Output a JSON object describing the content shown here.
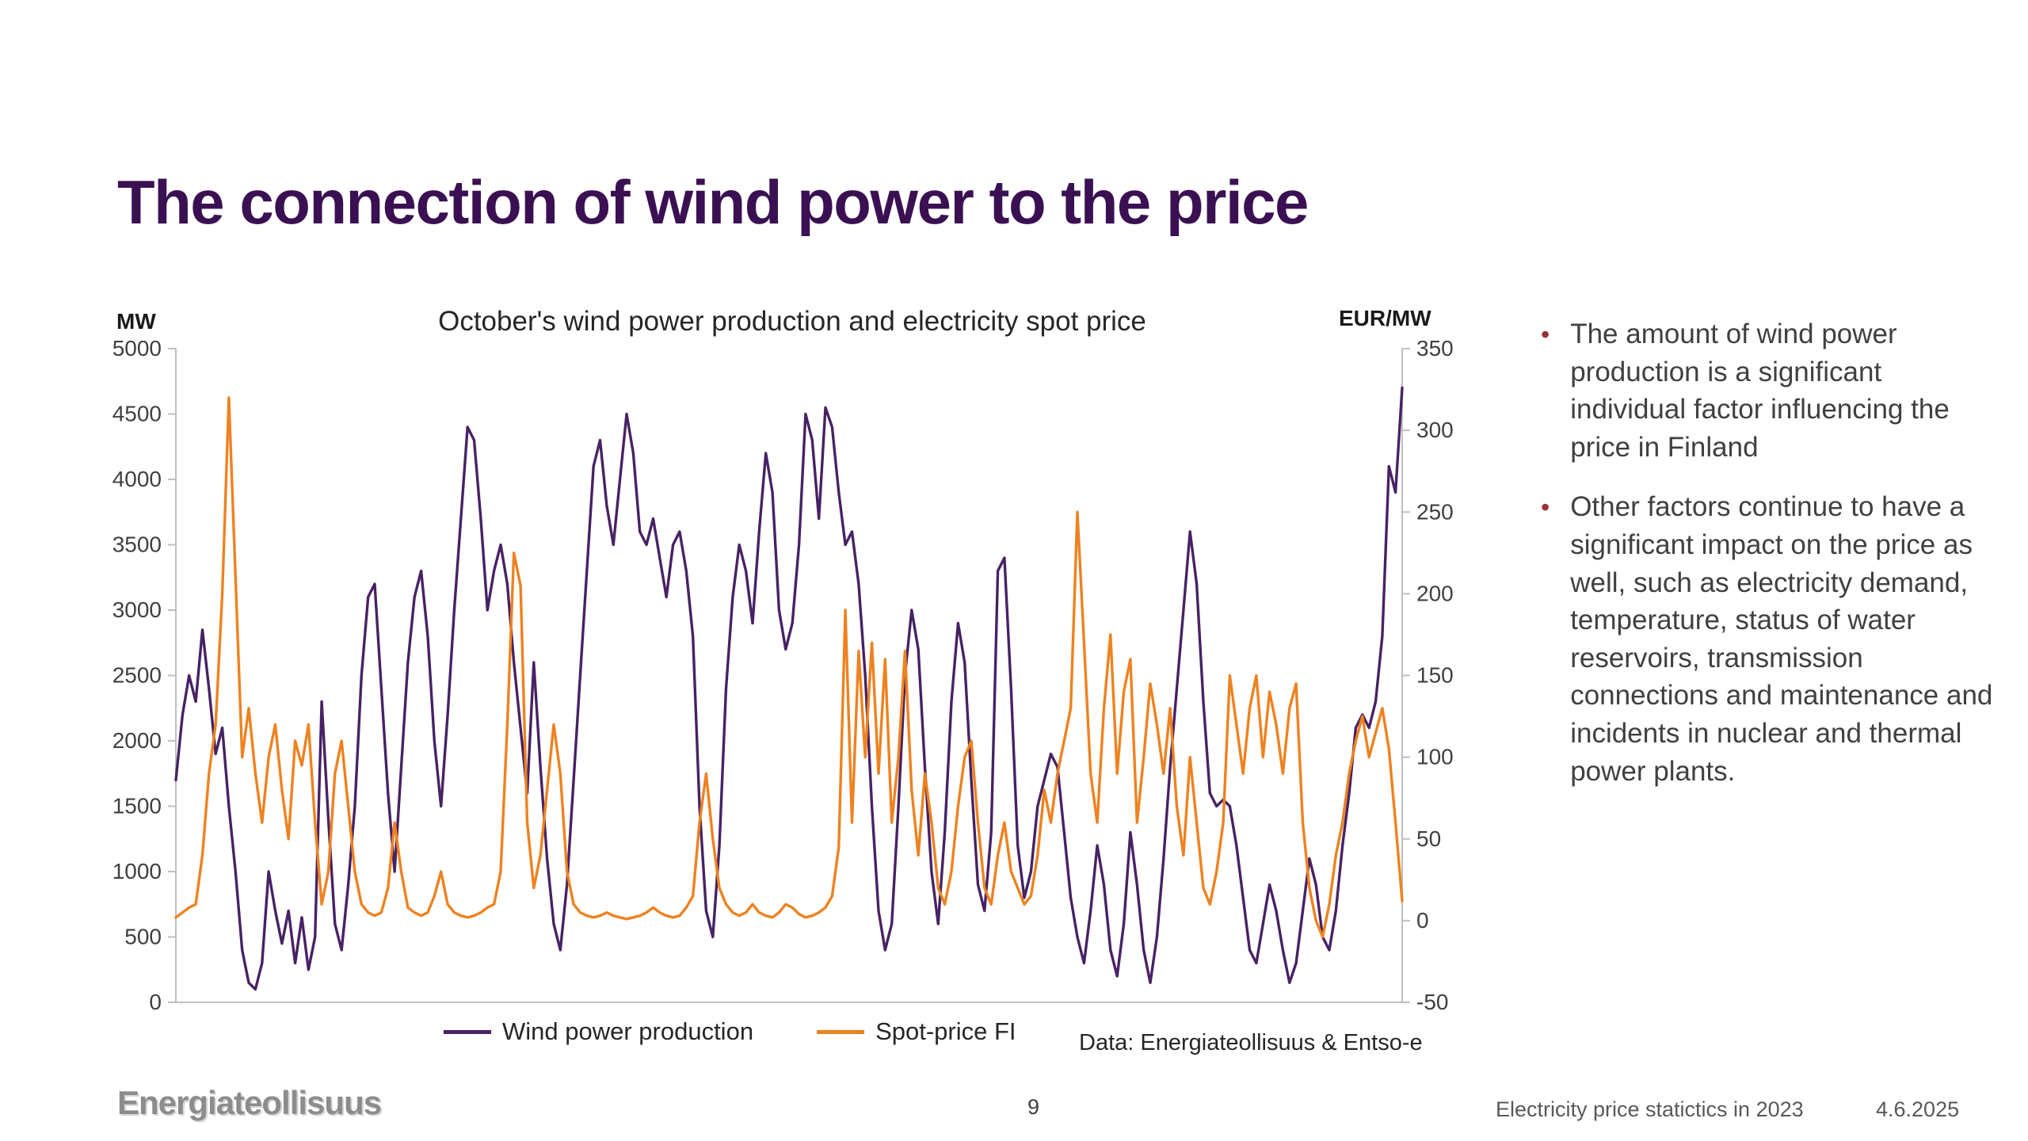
{
  "slide": {
    "title": "The connection of wind power to the price"
  },
  "colors": {
    "title_purple": "#3b1053",
    "bullet_marker_red": "#9b3139",
    "wind_series_purple": "#482264",
    "spot_series_orange": "#ee8220"
  },
  "bullets": [
    {
      "marker": "•",
      "text": "The amount of wind power production is a significant individual factor influencing the price in Finland"
    },
    {
      "marker": "•",
      "text": "Other factors continue to have a significant impact on the price as well, such as electricity demand, temperature, status of water reservoirs, transmission connections and maintenance and incidents in nuclear and thermal power plants."
    }
  ],
  "footer": {
    "logo_text": "Energiateollisuus",
    "page_number": "9",
    "right_text": "Electricity price statictics in 2023",
    "date": "4.6.2025"
  },
  "chart_data": {
    "type": "line",
    "title": "October's wind power production and electricity spot price",
    "source_note": "Data: Energiateollisuus & Entso-e",
    "grid": false,
    "legend_position": "bottom",
    "x_axis": {
      "labels_visible": false
    },
    "left_axis": {
      "label": "MW",
      "min": 0,
      "max": 5000,
      "tick_step": 500
    },
    "right_axis": {
      "label": "EUR/MW",
      "min": -50,
      "max": 350,
      "tick_step": 50
    },
    "series": [
      {
        "name": "Wind power production",
        "axis": "left",
        "color": "#482264",
        "values": [
          1700,
          2200,
          2500,
          2300,
          2850,
          2400,
          1900,
          2100,
          1500,
          1000,
          400,
          150,
          100,
          300,
          1000,
          700,
          450,
          700,
          300,
          650,
          250,
          500,
          2300,
          1400,
          600,
          400,
          900,
          1500,
          2500,
          3100,
          3200,
          2400,
          1600,
          1000,
          1800,
          2600,
          3100,
          3300,
          2800,
          2000,
          1500,
          2200,
          3000,
          3700,
          4400,
          4300,
          3700,
          3000,
          3300,
          3500,
          3200,
          2600,
          2100,
          1600,
          2600,
          1800,
          1100,
          600,
          400,
          900,
          1700,
          2500,
          3300,
          4100,
          4300,
          3800,
          3500,
          4000,
          4500,
          4200,
          3600,
          3500,
          3700,
          3400,
          3100,
          3500,
          3600,
          3300,
          2800,
          1500,
          700,
          500,
          1200,
          2400,
          3100,
          3500,
          3300,
          2900,
          3600,
          4200,
          3900,
          3000,
          2700,
          2900,
          3500,
          4500,
          4300,
          3700,
          4550,
          4400,
          3900,
          3500,
          3600,
          3200,
          2500,
          1500,
          700,
          400,
          600,
          1500,
          2500,
          3000,
          2700,
          1800,
          1000,
          600,
          1300,
          2300,
          2900,
          2600,
          1700,
          900,
          700,
          1300,
          3300,
          3400,
          2400,
          1200,
          800,
          1000,
          1500,
          1700,
          1900,
          1800,
          1300,
          800,
          500,
          300,
          700,
          1200,
          900,
          400,
          200,
          600,
          1300,
          900,
          400,
          150,
          500,
          1100,
          1800,
          2400,
          3000,
          3600,
          3200,
          2300,
          1600,
          1500,
          1550,
          1500,
          1200,
          800,
          400,
          300,
          600,
          900,
          700,
          400,
          150,
          300,
          700,
          1100,
          900,
          500,
          400,
          700,
          1200,
          1600,
          2100,
          2200,
          2100,
          2300,
          2800,
          4100,
          3900,
          4700
        ]
      },
      {
        "name": "Spot-price FI",
        "axis": "right",
        "color": "#ee8220",
        "values": [
          2,
          5,
          8,
          10,
          40,
          90,
          120,
          200,
          320,
          210,
          100,
          130,
          90,
          60,
          100,
          120,
          80,
          50,
          110,
          95,
          120,
          60,
          10,
          30,
          90,
          110,
          70,
          30,
          10,
          5,
          3,
          5,
          20,
          60,
          30,
          8,
          5,
          3,
          5,
          15,
          30,
          10,
          5,
          3,
          2,
          3,
          5,
          8,
          10,
          30,
          120,
          225,
          205,
          60,
          20,
          40,
          80,
          120,
          90,
          30,
          10,
          5,
          3,
          2,
          3,
          5,
          3,
          2,
          1,
          2,
          3,
          5,
          8,
          5,
          3,
          2,
          3,
          8,
          15,
          60,
          90,
          50,
          20,
          10,
          5,
          3,
          5,
          10,
          5,
          3,
          2,
          5,
          10,
          8,
          4,
          2,
          3,
          5,
          8,
          15,
          45,
          190,
          60,
          165,
          100,
          170,
          90,
          160,
          60,
          100,
          165,
          80,
          40,
          90,
          60,
          20,
          10,
          30,
          70,
          100,
          110,
          60,
          20,
          10,
          40,
          60,
          30,
          20,
          10,
          15,
          40,
          80,
          60,
          90,
          110,
          130,
          250,
          170,
          90,
          60,
          130,
          175,
          90,
          140,
          160,
          60,
          100,
          145,
          120,
          90,
          130,
          70,
          40,
          100,
          60,
          20,
          10,
          30,
          60,
          150,
          120,
          90,
          130,
          150,
          100,
          140,
          120,
          90,
          130,
          145,
          60,
          20,
          0,
          -10,
          10,
          40,
          60,
          90,
          110,
          125,
          100,
          115,
          130,
          105,
          60,
          12
        ]
      }
    ]
  }
}
